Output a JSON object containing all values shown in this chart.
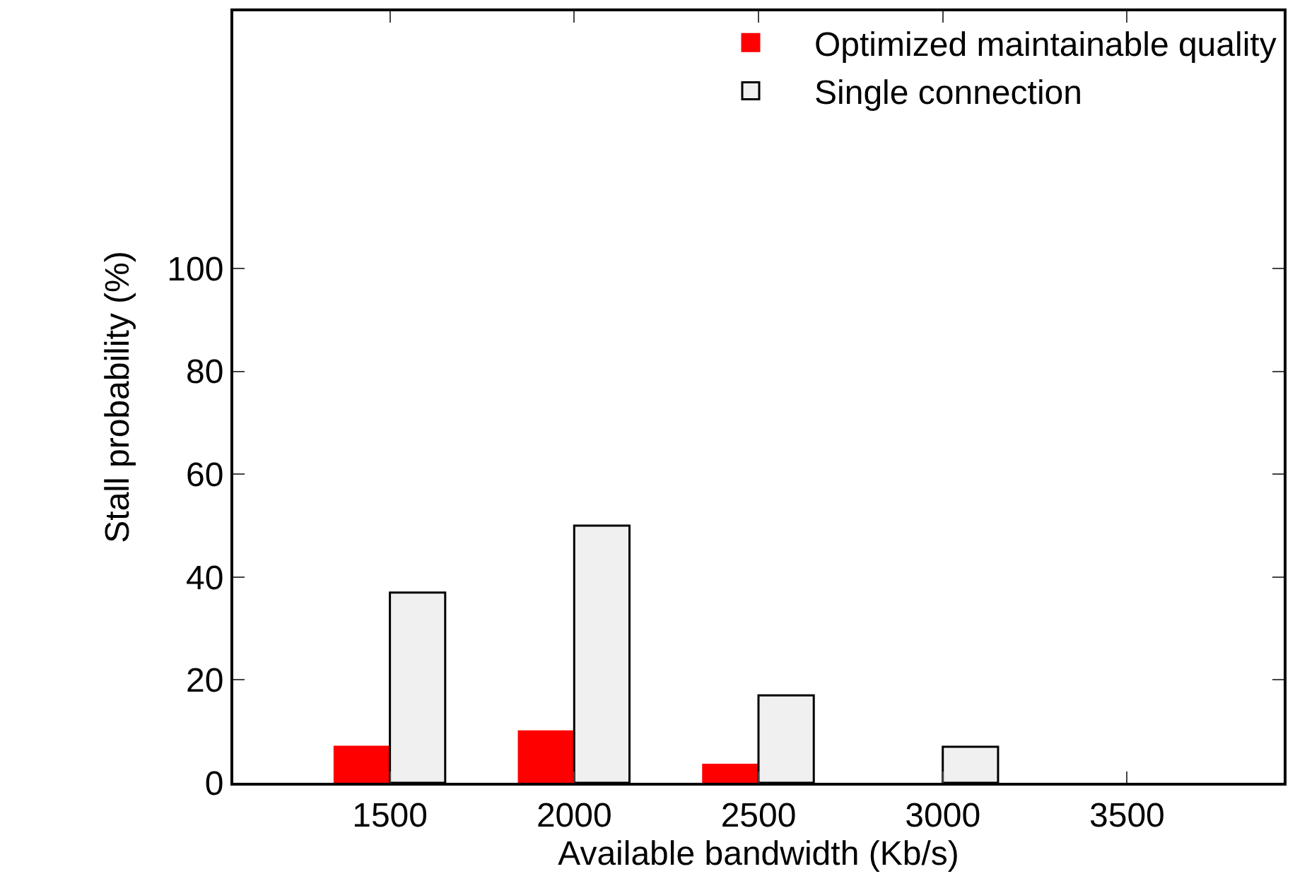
{
  "chart_data": {
    "type": "bar",
    "xlabel": "Available bandwidth (Kb/s)",
    "ylabel": "Stall probability (%)",
    "categories": [
      "1500",
      "2000",
      "2500",
      "3000",
      "3500"
    ],
    "series": [
      {
        "name": "Optimized maintainable quality",
        "color": "#ff0000",
        "values": [
          7,
          10,
          3.5,
          null,
          null
        ]
      },
      {
        "name": "Single connection",
        "color": "#f0f0f0",
        "values": [
          37,
          50,
          17,
          7,
          null
        ]
      }
    ],
    "ylim": [
      0,
      150
    ],
    "yticks": [
      0,
      20,
      40,
      60,
      80,
      100
    ],
    "grid": false,
    "legend": "top right"
  }
}
